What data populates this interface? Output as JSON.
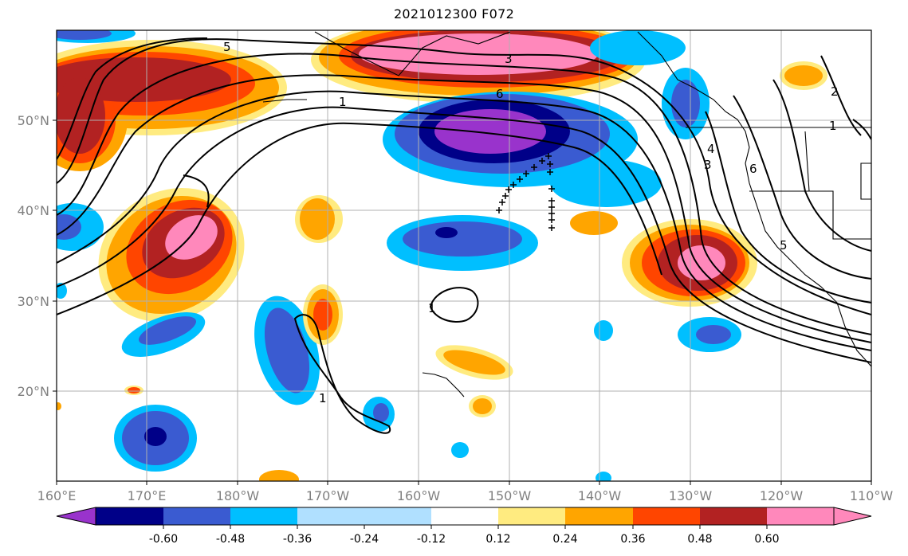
{
  "title": "2021012300 F072",
  "map": {
    "lon_ticks": [
      "160°E",
      "170°E",
      "180°W",
      "170°W",
      "160°W",
      "150°W",
      "140°W",
      "130°W",
      "120°W",
      "110°W"
    ],
    "lat_ticks": [
      "50°N",
      "40°N",
      "30°N",
      "20°N"
    ],
    "contour_labels": [
      "5",
      "1",
      "3",
      "6",
      "4",
      "3",
      "2",
      "1",
      "6",
      "5",
      "1",
      "1"
    ],
    "colorbar": {
      "ticks": [
        "-0.60",
        "-0.48",
        "-0.36",
        "-0.24",
        "-0.12",
        "0.12",
        "0.24",
        "0.36",
        "0.48",
        "0.60"
      ],
      "colors": [
        "#9933cc",
        "#000088",
        "#3a5bd1",
        "#00bfff",
        "#b0e0ff",
        "#ffffff",
        "#ffeb80",
        "#ffa500",
        "#ff4500",
        "#b22222",
        "#ff88bb"
      ]
    },
    "fill_colors": {
      "purple": "#9933cc",
      "navy": "#000088",
      "blue": "#3a5bd1",
      "cyan": "#00bfff",
      "lightyellow": "#ffeb80",
      "orange": "#ffa500",
      "red": "#ff4500",
      "darkred": "#b22222",
      "pink": "#ff88bb"
    }
  }
}
